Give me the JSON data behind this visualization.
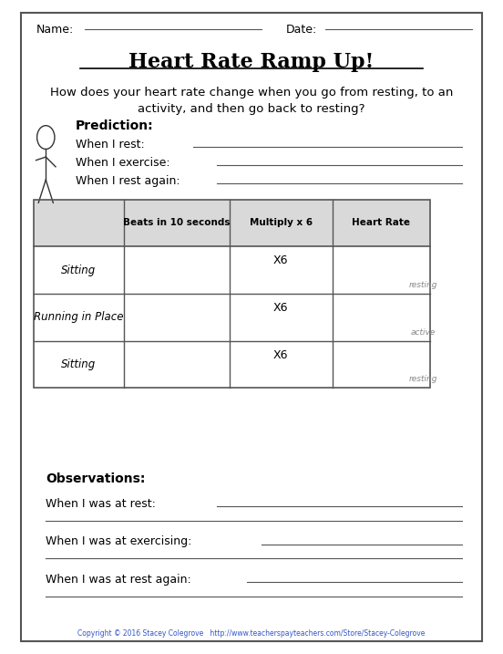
{
  "title": "Heart Rate Ramp Up!",
  "name_label": "Name:",
  "date_label": "Date:",
  "question_line1": "How does your heart rate change when you go from resting, to an",
  "question_line2": "activity, and then go back to resting?",
  "prediction_label": "Prediction:",
  "when_rest": "When I rest: ",
  "when_exercise": "When I exercise: ",
  "when_rest_again": "When I rest again: ",
  "table_headers": [
    "",
    "Beats in 10 seconds",
    "Multiply x 6",
    "Heart Rate"
  ],
  "table_rows": [
    [
      "Sitting",
      "",
      "X6",
      "resting"
    ],
    [
      "Running in Place",
      "",
      "X6",
      "active"
    ],
    [
      "Sitting",
      "",
      "X6",
      "resting"
    ]
  ],
  "observations_label": "Observations:",
  "obs_rest": "When I was at rest: ",
  "obs_exercise": "When I was at exercising: ",
  "obs_rest_again": "When I was at rest again: ",
  "copyright": "Copyright © 2016 Stacey Colegrove   http://www.teacherspayteachers.com/Store/Stacey-Colegrove",
  "bg_color": "#ffffff",
  "header_bg": "#d9d9d9",
  "border_color": "#555555",
  "text_color": "#000000",
  "line_color": "#555555",
  "figure_color": "#333333",
  "small_text_color": "#888888",
  "copyright_color": "#3355cc"
}
